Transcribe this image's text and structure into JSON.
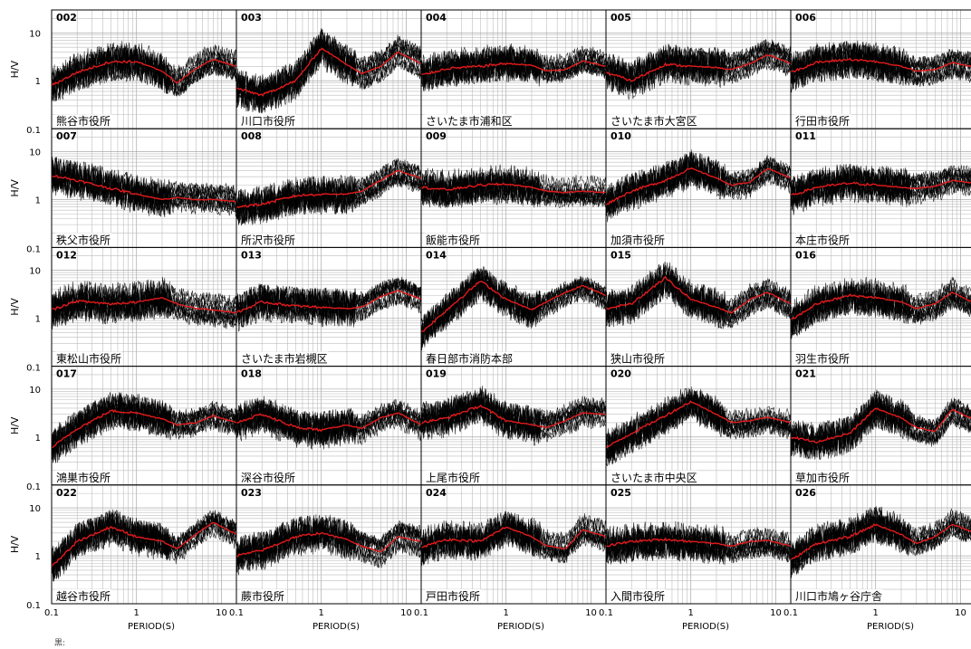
{
  "chart_data": {
    "type": "line",
    "title": "",
    "ylabel": "H/V",
    "xlabel": "PERIOD(S)",
    "xscale": "log",
    "yscale": "log",
    "xlim": [
      0.1,
      15
    ],
    "ylim": [
      0.1,
      30
    ],
    "grid": true,
    "x_ticks": [
      "0.1",
      "1",
      "10"
    ],
    "y_ticks": [
      "10",
      "1",
      "0.1"
    ],
    "series_colors": {
      "individual_records": "#000000",
      "average": "#e31a1c"
    },
    "panels": [
      {
        "id": "002",
        "label": "熊谷市役所",
        "avg_x": [
          0.1,
          0.2,
          0.5,
          1,
          2,
          3,
          5,
          8,
          15
        ],
        "avg_y": [
          0.8,
          1.5,
          2.5,
          2.5,
          1.6,
          0.9,
          1.8,
          2.8,
          2.0
        ]
      },
      {
        "id": "003",
        "label": "川口市役所",
        "avg_x": [
          0.1,
          0.2,
          0.5,
          1,
          2,
          3,
          5,
          8,
          15
        ],
        "avg_y": [
          0.7,
          0.5,
          1.0,
          4.8,
          2.2,
          1.4,
          2.0,
          4.0,
          2.3
        ]
      },
      {
        "id": "004",
        "label": "さいたま市浦和区",
        "avg_x": [
          0.1,
          0.2,
          0.5,
          1,
          2,
          3,
          5,
          8,
          15
        ],
        "avg_y": [
          1.3,
          1.8,
          2.0,
          2.3,
          2.1,
          1.6,
          1.7,
          2.6,
          2.0
        ]
      },
      {
        "id": "005",
        "label": "さいたま市大宮区",
        "avg_x": [
          0.1,
          0.2,
          0.5,
          1,
          2,
          3,
          5,
          8,
          15
        ],
        "avg_y": [
          1.5,
          1.0,
          2.2,
          2.0,
          1.9,
          1.7,
          2.3,
          3.5,
          2.3
        ]
      },
      {
        "id": "006",
        "label": "行田市役所",
        "avg_x": [
          0.1,
          0.2,
          0.5,
          1,
          2,
          3,
          5,
          8,
          15
        ],
        "avg_y": [
          1.5,
          2.4,
          2.8,
          2.5,
          2.0,
          1.6,
          1.7,
          2.4,
          1.9
        ]
      },
      {
        "id": "007",
        "label": "秩父市役所",
        "avg_x": [
          0.1,
          0.2,
          0.5,
          1,
          2,
          3,
          5,
          8,
          15
        ],
        "avg_y": [
          3.2,
          2.5,
          1.7,
          1.3,
          1.0,
          1.1,
          1.0,
          1.0,
          0.9
        ]
      },
      {
        "id": "008",
        "label": "所沢市役所",
        "avg_x": [
          0.1,
          0.2,
          0.5,
          1,
          2,
          3,
          5,
          8,
          15
        ],
        "avg_y": [
          0.7,
          0.8,
          1.2,
          1.3,
          1.3,
          1.5,
          2.5,
          4.0,
          2.8
        ]
      },
      {
        "id": "009",
        "label": "飯能市役所",
        "avg_x": [
          0.1,
          0.2,
          0.5,
          1,
          2,
          3,
          5,
          8,
          15
        ],
        "avg_y": [
          1.8,
          1.6,
          2.0,
          2.1,
          1.8,
          1.5,
          1.4,
          1.5,
          1.4
        ]
      },
      {
        "id": "010",
        "label": "加須市役所",
        "avg_x": [
          0.1,
          0.2,
          0.5,
          1,
          2,
          3,
          5,
          8,
          15
        ],
        "avg_y": [
          0.8,
          1.5,
          2.5,
          4.5,
          2.8,
          2.0,
          2.3,
          4.5,
          2.8
        ]
      },
      {
        "id": "011",
        "label": "本庄市役所",
        "avg_x": [
          0.1,
          0.2,
          0.5,
          1,
          2,
          3,
          5,
          8,
          15
        ],
        "avg_y": [
          1.2,
          1.8,
          2.2,
          2.0,
          1.8,
          1.7,
          1.9,
          2.5,
          2.2
        ]
      },
      {
        "id": "012",
        "label": "東松山市役所",
        "avg_x": [
          0.1,
          0.2,
          0.5,
          1,
          2,
          3,
          5,
          8,
          15
        ],
        "avg_y": [
          1.5,
          2.3,
          2.0,
          2.2,
          2.7,
          2.0,
          1.6,
          1.5,
          1.3
        ]
      },
      {
        "id": "013",
        "label": "さいたま市岩槻区",
        "avg_x": [
          0.1,
          0.2,
          0.5,
          1,
          2,
          3,
          5,
          8,
          15
        ],
        "avg_y": [
          1.3,
          2.2,
          1.8,
          1.7,
          1.6,
          1.7,
          2.8,
          3.8,
          2.5
        ]
      },
      {
        "id": "014",
        "label": "春日部市消防本部",
        "avg_x": [
          0.1,
          0.2,
          0.5,
          1,
          2,
          3,
          5,
          8,
          15
        ],
        "avg_y": [
          0.5,
          1.5,
          6.0,
          2.5,
          1.5,
          2.2,
          3.5,
          4.8,
          3.0
        ]
      },
      {
        "id": "015",
        "label": "狭山市役所",
        "avg_x": [
          0.1,
          0.2,
          0.5,
          1,
          2,
          3,
          5,
          8,
          15
        ],
        "avg_y": [
          1.6,
          2.0,
          7.0,
          2.5,
          1.7,
          1.3,
          2.5,
          3.5,
          2.0
        ]
      },
      {
        "id": "016",
        "label": "羽生市役所",
        "avg_x": [
          0.1,
          0.2,
          0.5,
          1,
          2,
          3,
          5,
          8,
          15
        ],
        "avg_y": [
          0.9,
          2.0,
          3.0,
          2.7,
          2.2,
          1.6,
          2.0,
          3.5,
          2.0
        ]
      },
      {
        "id": "017",
        "label": "鴻巣市役所",
        "avg_x": [
          0.1,
          0.2,
          0.5,
          1,
          2,
          3,
          5,
          8,
          15
        ],
        "avg_y": [
          0.6,
          1.5,
          3.5,
          3.2,
          2.4,
          1.8,
          2.0,
          2.8,
          2.0
        ]
      },
      {
        "id": "018",
        "label": "深谷市役所",
        "avg_x": [
          0.1,
          0.2,
          0.5,
          1,
          2,
          3,
          5,
          8,
          15
        ],
        "avg_y": [
          2.0,
          3.0,
          1.6,
          1.4,
          1.8,
          1.5,
          2.5,
          3.2,
          1.8
        ]
      },
      {
        "id": "019",
        "label": "上尾市役所",
        "avg_x": [
          0.1,
          0.2,
          0.5,
          1,
          2,
          3,
          5,
          8,
          15
        ],
        "avg_y": [
          2.0,
          2.5,
          4.5,
          2.2,
          1.8,
          1.6,
          2.2,
          3.2,
          3.0
        ]
      },
      {
        "id": "020",
        "label": "さいたま市中央区",
        "avg_x": [
          0.1,
          0.2,
          0.5,
          1,
          2,
          3,
          5,
          8,
          15
        ],
        "avg_y": [
          0.6,
          1.2,
          2.8,
          5.5,
          3.0,
          2.0,
          2.2,
          2.6,
          2.0
        ]
      },
      {
        "id": "021",
        "label": "草加市役所",
        "avg_x": [
          0.1,
          0.2,
          0.5,
          1,
          2,
          3,
          5,
          8,
          15
        ],
        "avg_y": [
          1.0,
          0.8,
          1.2,
          4.0,
          2.5,
          1.6,
          1.3,
          3.8,
          2.2
        ]
      },
      {
        "id": "022",
        "label": "越谷市役所",
        "avg_x": [
          0.1,
          0.2,
          0.5,
          1,
          2,
          3,
          5,
          8,
          15
        ],
        "avg_y": [
          0.6,
          2.0,
          4.0,
          2.5,
          2.0,
          1.4,
          2.8,
          5.0,
          2.8
        ]
      },
      {
        "id": "023",
        "label": "蕨市役所",
        "avg_x": [
          0.1,
          0.2,
          0.5,
          1,
          2,
          3,
          5,
          8,
          15
        ],
        "avg_y": [
          1.0,
          1.3,
          2.5,
          3.0,
          2.2,
          1.6,
          1.2,
          2.5,
          2.0
        ]
      },
      {
        "id": "024",
        "label": "戸田市役所",
        "avg_x": [
          0.1,
          0.2,
          0.5,
          1,
          2,
          3,
          5,
          8,
          15
        ],
        "avg_y": [
          1.5,
          2.2,
          2.0,
          4.0,
          2.5,
          1.6,
          1.4,
          3.5,
          2.5
        ]
      },
      {
        "id": "025",
        "label": "入間市役所",
        "avg_x": [
          0.1,
          0.2,
          0.5,
          1,
          2,
          3,
          5,
          8,
          15
        ],
        "avg_y": [
          1.6,
          2.0,
          2.2,
          2.0,
          1.8,
          1.6,
          2.0,
          2.1,
          1.6
        ]
      },
      {
        "id": "026",
        "label": "川口市鳩ヶ谷庁舎",
        "avg_x": [
          0.1,
          0.2,
          0.5,
          1,
          2,
          3,
          5,
          8,
          15
        ],
        "avg_y": [
          0.8,
          1.8,
          2.5,
          4.5,
          2.8,
          1.8,
          2.5,
          4.5,
          3.0
        ]
      }
    ]
  },
  "note": "黒:"
}
